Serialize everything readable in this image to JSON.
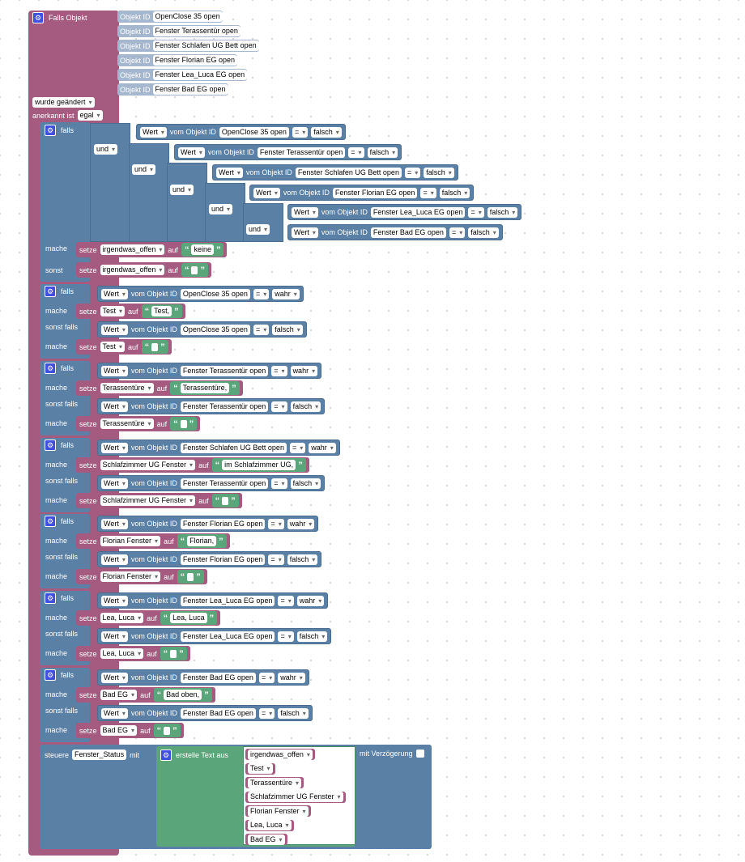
{
  "trigger": {
    "title": "Falls Objekt",
    "object_id_label": "Objekt ID",
    "objects": [
      "OpenClose 35 open",
      "Fenster Terassentür open",
      "Fenster Schlafen UG Bett open",
      "Fenster Florian EG open",
      "Fenster Lea_Luca EG open",
      "Fenster Bad EG open"
    ],
    "changed_option": "wurde geändert",
    "ack_label": "anerkannt ist",
    "ack_option": "egal"
  },
  "labels": {
    "if": "falls",
    "do": "mache",
    "else": "sonst",
    "elseif": "sonst falls",
    "and": "und",
    "value": "Wert",
    "of_object": "vom Objekt ID",
    "eq": "=",
    "set": "setze",
    "to": "auf"
  },
  "colors": {
    "event": "#a55b80",
    "logic": "#5b80a5",
    "text": "#5ba57a",
    "variable": "#a55b80"
  },
  "icons": {
    "mutator": "gear-icon"
  },
  "first_if": {
    "conditions": [
      {
        "object": "OpenClose 35 open",
        "value": "falsch"
      },
      {
        "object": "Fenster Terassentür open",
        "value": "falsch"
      },
      {
        "object": "Fenster Schlafen UG Bett open",
        "value": "falsch"
      },
      {
        "object": "Fenster Florian EG open",
        "value": "falsch"
      },
      {
        "object": "Fenster Lea_Luca EG open",
        "value": "falsch"
      },
      {
        "object": "Fenster Bad EG open",
        "value": "falsch"
      }
    ],
    "do_var": "irgendwas_offen",
    "do_text": "keine",
    "else_var": "irgendwas_offen"
  },
  "ifs": [
    {
      "object": "OpenClose 35 open",
      "var": "Test",
      "text": "Test,"
    },
    {
      "object": "Fenster Terassentür open",
      "var": "Terassentüre",
      "text": "Terassentüre,"
    },
    {
      "object": "Fenster Schlafen UG Bett open",
      "else_object": "Fenster Terassentür open",
      "var": "Schlafzimmer UG Fenster",
      "text": "im Schlafzimmer UG,"
    },
    {
      "object": "Fenster Florian EG open",
      "var": "Florian Fenster",
      "text": "Florian,"
    },
    {
      "object": "Fenster Lea_Luca EG open",
      "var": "Lea, Luca",
      "text": "Lea, Luca"
    },
    {
      "object": "Fenster Bad EG open",
      "var": "Bad EG",
      "text": "Bad oben,"
    }
  ],
  "true_value": "wahr",
  "false_value": "falsch",
  "control": {
    "label": "steuere",
    "target": "Fenster_Status",
    "with": "mit",
    "join_label": "erstelle Text aus",
    "items": [
      "irgendwas_offen",
      "Test",
      "Terassentüre",
      "Schlafzimmer UG Fenster",
      "Florian Fenster",
      "Lea, Luca",
      "Bad EG"
    ],
    "delay_label": "mit Verzögerung"
  }
}
